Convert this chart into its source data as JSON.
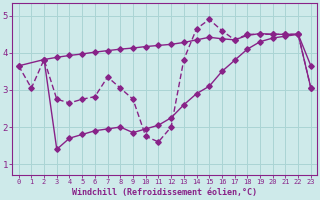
{
  "line1_x": [
    0,
    2,
    3,
    4,
    5,
    6,
    7,
    8,
    9,
    10,
    11,
    12,
    13,
    14,
    15,
    16,
    17,
    18,
    19,
    20,
    21,
    22,
    23
  ],
  "line1_y": [
    3.65,
    3.82,
    3.88,
    3.93,
    3.97,
    4.02,
    4.06,
    4.1,
    4.13,
    4.17,
    4.2,
    4.23,
    4.28,
    4.35,
    4.42,
    4.38,
    4.35,
    4.47,
    4.52,
    4.5,
    4.5,
    4.5,
    3.65
  ],
  "line2_x": [
    0,
    1,
    2,
    3,
    4,
    5,
    6,
    7,
    8,
    9,
    10,
    11,
    12,
    13,
    14,
    15,
    16,
    17,
    18,
    19,
    20,
    21,
    22,
    23
  ],
  "line2_y": [
    3.65,
    3.05,
    3.82,
    2.75,
    2.65,
    2.75,
    2.82,
    3.35,
    3.05,
    2.75,
    1.75,
    1.6,
    2.0,
    3.82,
    4.65,
    4.9,
    4.6,
    4.35,
    4.5,
    4.5,
    4.5,
    4.5,
    4.5,
    3.05
  ],
  "line3_x": [
    2,
    3,
    4,
    5,
    6,
    7,
    8,
    9,
    10,
    11,
    12,
    13,
    14,
    15,
    16,
    17,
    18,
    19,
    20,
    21,
    22,
    23
  ],
  "line3_y": [
    3.82,
    1.4,
    1.7,
    1.8,
    1.9,
    1.95,
    2.0,
    1.85,
    1.95,
    2.05,
    2.25,
    2.6,
    2.9,
    3.1,
    3.5,
    3.8,
    4.1,
    4.3,
    4.4,
    4.45,
    4.5,
    3.05
  ],
  "color": "#882288",
  "bg_color": "#ceeaea",
  "grid_color": "#aad4d4",
  "xlabel": "Windchill (Refroidissement éolien,°C)",
  "xlim": [
    -0.5,
    23.5
  ],
  "ylim": [
    0.7,
    5.35
  ],
  "xticks": [
    0,
    1,
    2,
    3,
    4,
    5,
    6,
    7,
    8,
    9,
    10,
    11,
    12,
    13,
    14,
    15,
    16,
    17,
    18,
    19,
    20,
    21,
    22,
    23
  ],
  "yticks": [
    1,
    2,
    3,
    4,
    5
  ],
  "marker": "D",
  "markersize": 2.8,
  "linewidth": 1.0
}
